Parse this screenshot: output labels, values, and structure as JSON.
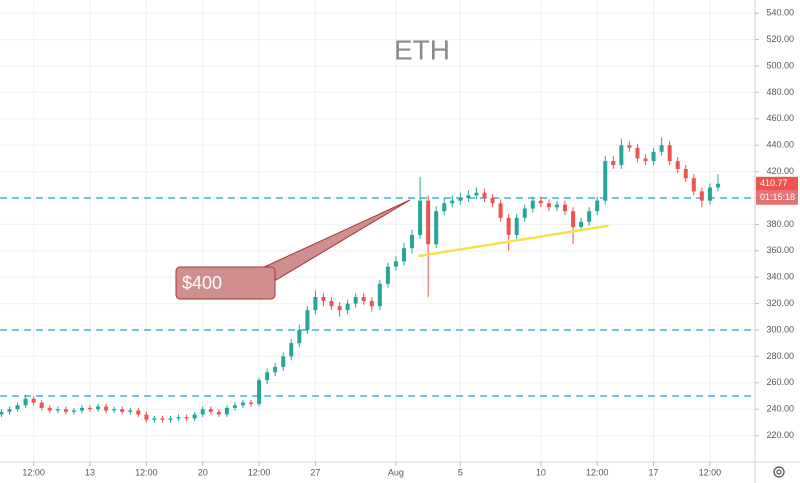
{
  "chart_data": {
    "type": "candlestick",
    "title": "ETH",
    "annotation": "$400",
    "countdown": "01:15:18",
    "up_color": "#26a69a",
    "down_color": "#ef5350",
    "hline_color": "#3bb6d3",
    "grid": true,
    "xlim": [
      -1.59,
      45.3
    ],
    "ylim": [
      200,
      550
    ],
    "xticks": [
      {
        "value": 0.5,
        "label": "12:00"
      },
      {
        "value": 4,
        "label": "13"
      },
      {
        "value": 7.5,
        "label": "12:00"
      },
      {
        "value": 11,
        "label": "20"
      },
      {
        "value": 14.5,
        "label": "12:00"
      },
      {
        "value": 18,
        "label": "27"
      },
      {
        "value": 23,
        "label": "Aug"
      },
      {
        "value": 27,
        "label": "5"
      },
      {
        "value": 32,
        "label": "10"
      },
      {
        "value": 35.5,
        "label": "12:00"
      },
      {
        "value": 39,
        "label": "17"
      },
      {
        "value": 42.5,
        "label": "12:00"
      }
    ],
    "yticks": [
      {
        "value": 220,
        "label": "220.00"
      },
      {
        "value": 240,
        "label": "240.00"
      },
      {
        "value": 260,
        "label": "260.00"
      },
      {
        "value": 280,
        "label": "280.00"
      },
      {
        "value": 300,
        "label": "300.00"
      },
      {
        "value": 320,
        "label": "320.00"
      },
      {
        "value": 340,
        "label": "340.00"
      },
      {
        "value": 360,
        "label": "360.00"
      },
      {
        "value": 380,
        "label": "380.00"
      },
      {
        "value": 400,
        "label": "400.00"
      },
      {
        "value": 420,
        "label": "420.00"
      },
      {
        "value": 440,
        "label": "440.00"
      },
      {
        "value": 460,
        "label": "460.00"
      },
      {
        "value": 480,
        "label": "480.00"
      },
      {
        "value": 500,
        "label": "500.00"
      },
      {
        "value": 520,
        "label": "520.00"
      },
      {
        "value": 540,
        "label": "540.00"
      }
    ],
    "hlines": [
      400,
      300,
      250
    ],
    "trendline": {
      "color": "#f5e14b",
      "x": [
        24.4,
        36.2
      ],
      "y": [
        356,
        379
      ]
    },
    "x": [
      -1.5,
      -1,
      -0.5,
      0,
      0.5,
      1,
      1.5,
      2,
      2.5,
      3,
      3.5,
      4,
      4.5,
      5,
      5.5,
      6,
      6.5,
      7,
      7.5,
      8,
      8.5,
      9,
      9.5,
      10,
      10.5,
      11,
      11.5,
      12,
      12.5,
      13,
      13.5,
      14,
      14.5,
      15,
      15.5,
      16,
      16.5,
      17,
      17.5,
      18,
      18.5,
      19,
      19.5,
      20,
      20.5,
      21,
      21.5,
      22,
      22.5,
      23,
      23.5,
      24,
      24.5,
      25,
      25.5,
      26,
      26.5,
      27,
      27.5,
      28,
      28.5,
      29,
      29.5,
      30,
      30.5,
      31,
      31.5,
      32,
      32.5,
      33,
      33.5,
      34,
      34.5,
      35,
      35.5,
      36,
      36.5,
      37,
      37.5,
      38,
      38.5,
      39,
      39.5,
      40,
      40.5,
      41,
      41.5,
      42,
      42.5,
      43
    ],
    "open": [
      236,
      238,
      240,
      243,
      248,
      245,
      241,
      239,
      240,
      238,
      239,
      241,
      240,
      242,
      239,
      240,
      238,
      239,
      236,
      232,
      233,
      232,
      233,
      234,
      233,
      236,
      240,
      238,
      236,
      241,
      243,
      245,
      244,
      262,
      268,
      272,
      280,
      290,
      300,
      315,
      325,
      322,
      318,
      315,
      320,
      325,
      322,
      318,
      335,
      348,
      352,
      362,
      372,
      398,
      365,
      390,
      396,
      398,
      400,
      402,
      404,
      400,
      396,
      385,
      372,
      385,
      392,
      398,
      396,
      393,
      395,
      390,
      378,
      382,
      390,
      398,
      428,
      425,
      440,
      438,
      430,
      428,
      435,
      440,
      428,
      422,
      415,
      405,
      398,
      408
    ],
    "high": [
      240,
      242,
      245,
      251,
      250,
      247,
      243,
      242,
      242,
      241,
      243,
      243,
      244,
      244,
      242,
      242,
      241,
      241,
      238,
      235,
      235,
      235,
      236,
      236,
      238,
      242,
      242,
      240,
      243,
      245,
      247,
      247,
      264,
      271,
      275,
      283,
      293,
      304,
      318,
      330,
      328,
      325,
      321,
      323,
      328,
      328,
      325,
      338,
      351,
      356,
      366,
      376,
      416,
      402,
      394,
      400,
      402,
      404,
      406,
      408,
      407,
      403,
      399,
      388,
      388,
      395,
      401,
      401,
      399,
      398,
      398,
      393,
      385,
      393,
      401,
      432,
      432,
      445,
      443,
      441,
      433,
      438,
      446,
      443,
      431,
      425,
      418,
      408,
      411,
      418
    ],
    "low": [
      234,
      236,
      238,
      241,
      243,
      239,
      237,
      237,
      236,
      236,
      237,
      238,
      238,
      237,
      237,
      236,
      236,
      234,
      230,
      230,
      230,
      230,
      231,
      231,
      231,
      234,
      236,
      234,
      234,
      239,
      241,
      242,
      242,
      259,
      265,
      269,
      277,
      287,
      297,
      312,
      318,
      315,
      310,
      312,
      317,
      319,
      314,
      315,
      332,
      345,
      349,
      358,
      369,
      325,
      362,
      387,
      393,
      395,
      397,
      399,
      397,
      393,
      382,
      360,
      369,
      382,
      389,
      393,
      390,
      390,
      387,
      365,
      375,
      379,
      387,
      395,
      422,
      422,
      435,
      427,
      425,
      425,
      432,
      425,
      419,
      412,
      402,
      393,
      395,
      405
    ],
    "close": [
      238,
      240,
      243,
      248,
      245,
      241,
      239,
      240,
      238,
      239,
      241,
      240,
      242,
      239,
      240,
      238,
      239,
      236,
      232,
      233,
      232,
      233,
      234,
      233,
      236,
      240,
      238,
      236,
      241,
      243,
      245,
      244,
      262,
      268,
      272,
      280,
      290,
      300,
      315,
      325,
      322,
      318,
      315,
      320,
      325,
      322,
      318,
      335,
      348,
      352,
      362,
      372,
      398,
      365,
      390,
      396,
      398,
      400,
      402,
      404,
      400,
      396,
      385,
      372,
      385,
      392,
      398,
      396,
      393,
      395,
      390,
      378,
      382,
      390,
      398,
      428,
      425,
      440,
      438,
      430,
      428,
      435,
      440,
      428,
      422,
      415,
      405,
      398,
      408,
      410.77
    ]
  }
}
